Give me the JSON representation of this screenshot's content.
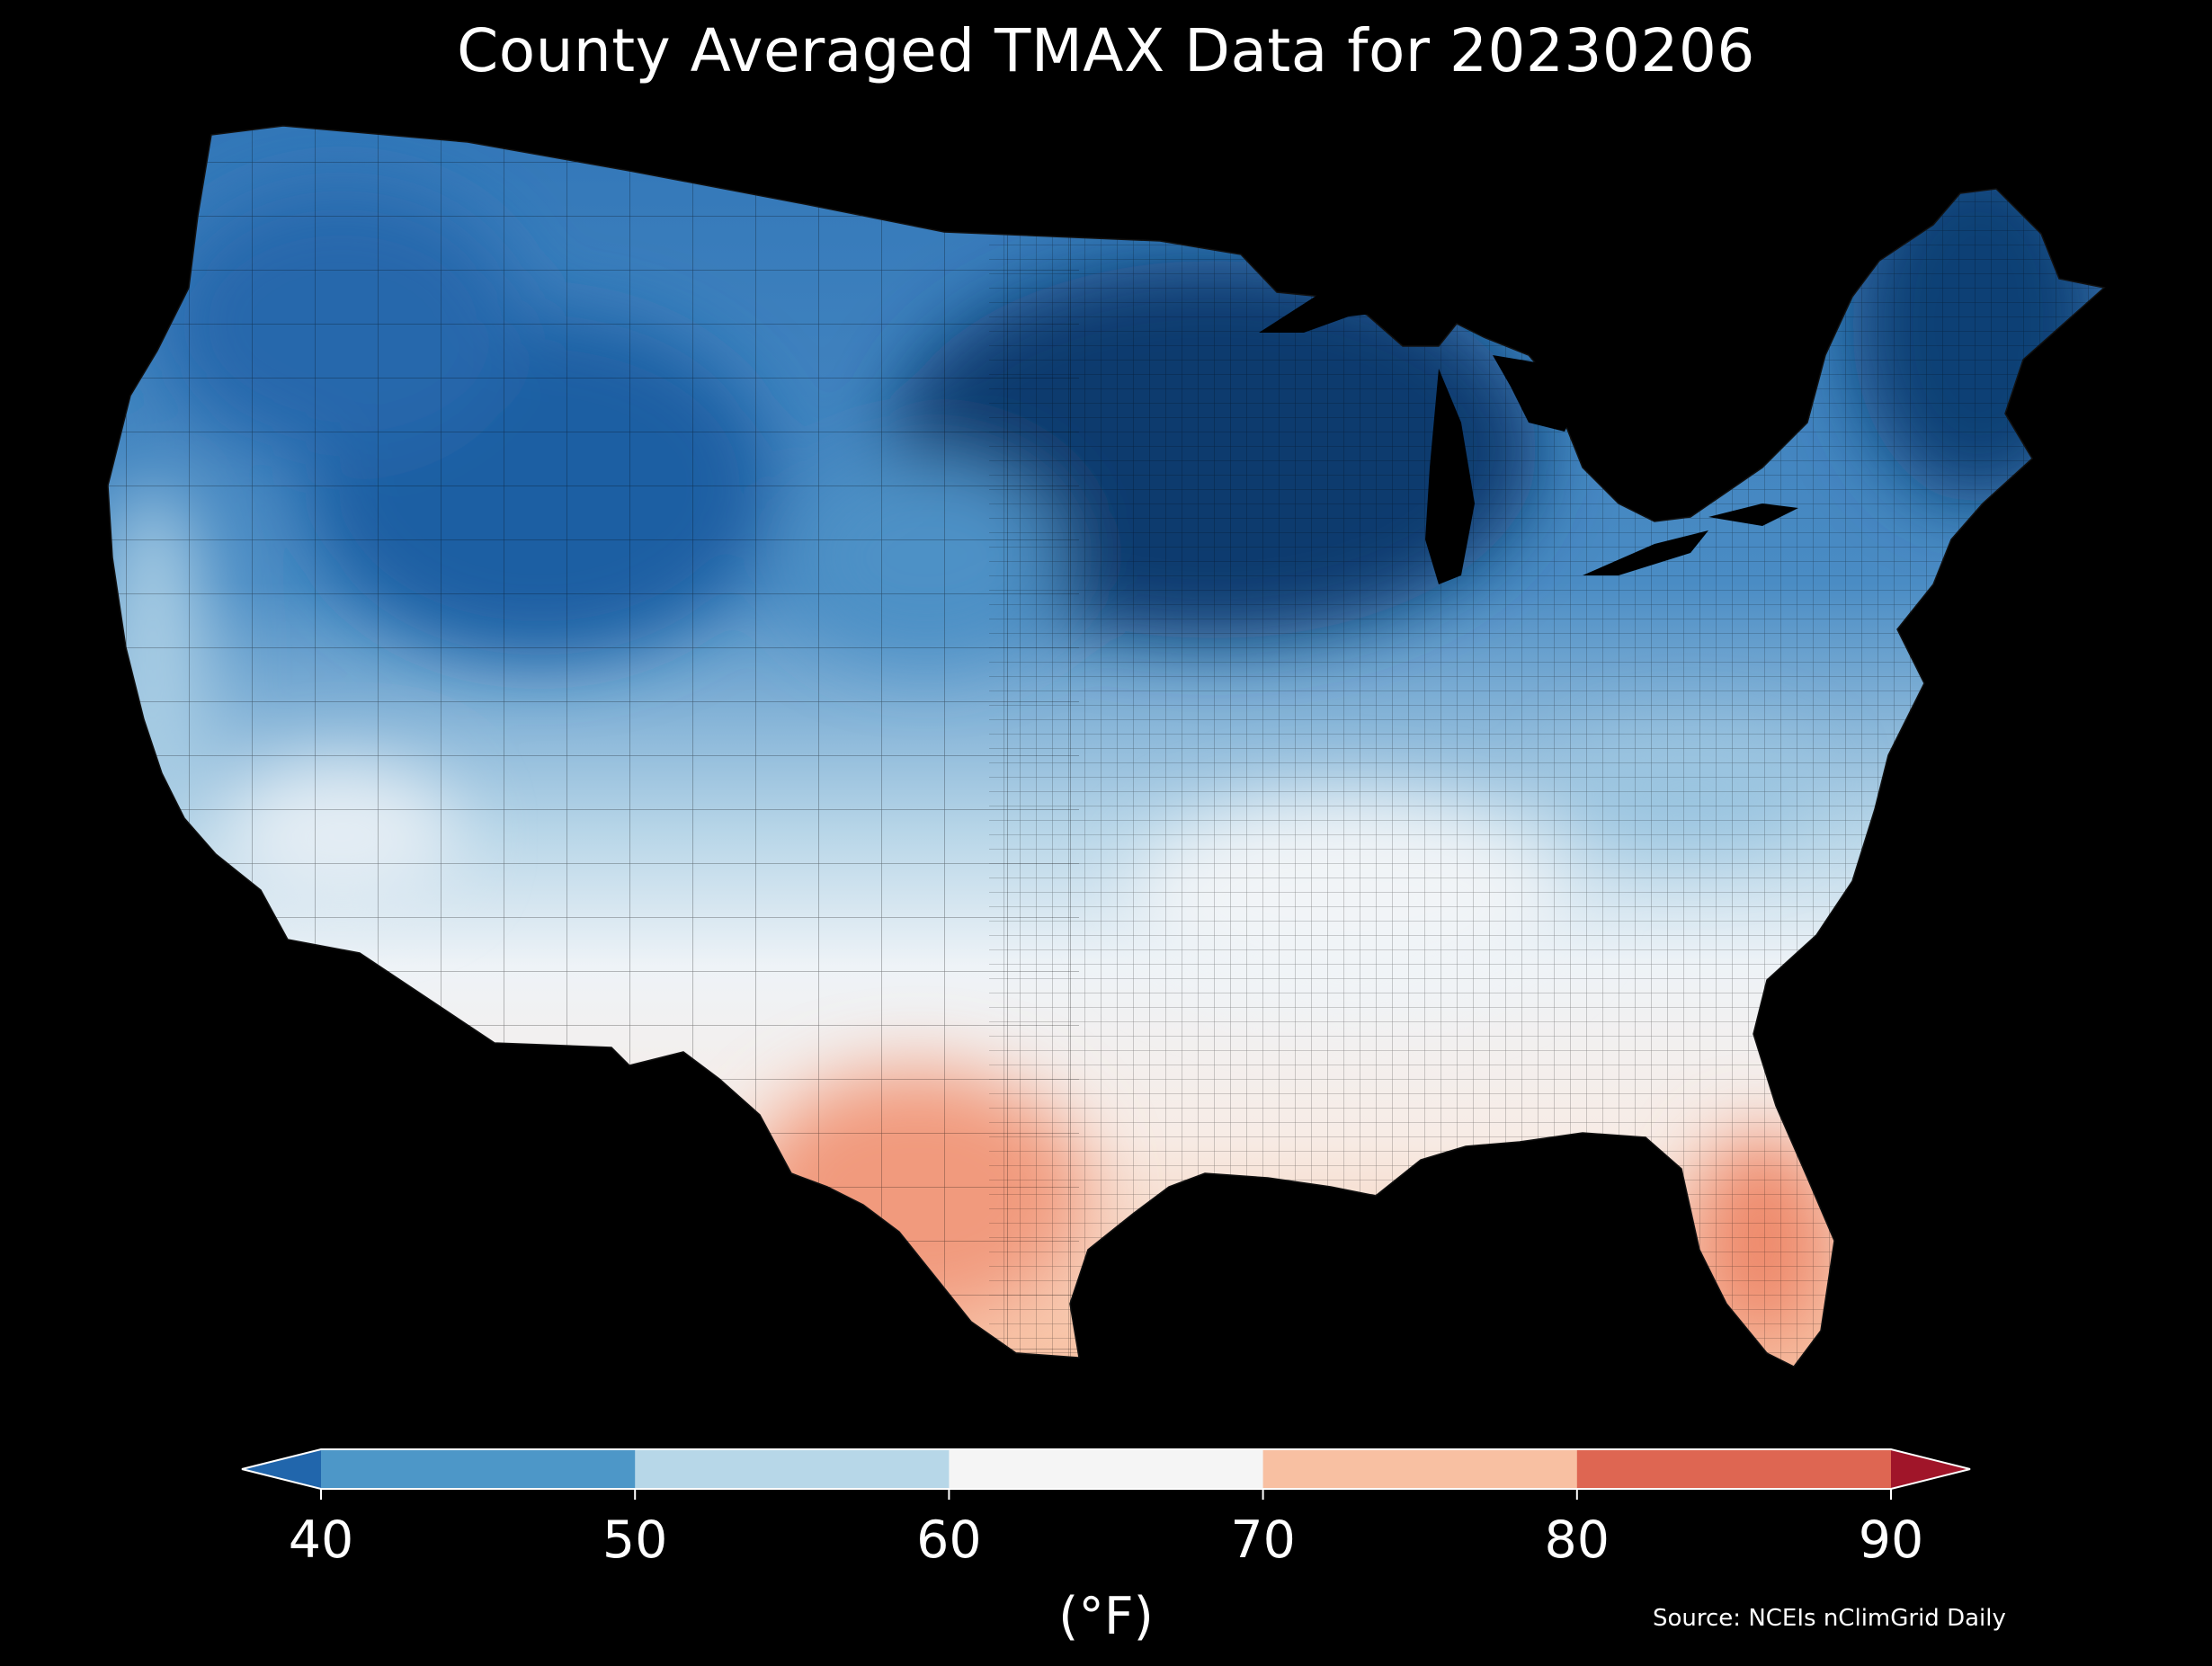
{
  "title": "County Averaged TMAX Data for 20230206",
  "colorbar": {
    "ticks": [
      "40",
      "50",
      "60",
      "70",
      "80",
      "90"
    ],
    "unit": "(°F)",
    "bins": [
      {
        "range": "<40",
        "color": "#2166ac"
      },
      {
        "range": "40-50",
        "color": "#4d97c8"
      },
      {
        "range": "50-60",
        "color": "#b7d7e8"
      },
      {
        "range": "60-70",
        "color": "#f5f5f5"
      },
      {
        "range": "70-80",
        "color": "#f8c0a2"
      },
      {
        "range": "80-90",
        "color": "#de6652"
      },
      {
        "range": ">90",
        "color": "#a01529"
      }
    ]
  },
  "source": "Source: NCEIs nClimGrid Daily",
  "map": {
    "region": "Contiguous United States",
    "variable": "TMAX",
    "units": "°F",
    "background": "#000000",
    "coldest_region": "Upper Midwest / Great Lakes (<40°F)",
    "warmest_region": "South Texas and South Florida (80-90°F)"
  }
}
